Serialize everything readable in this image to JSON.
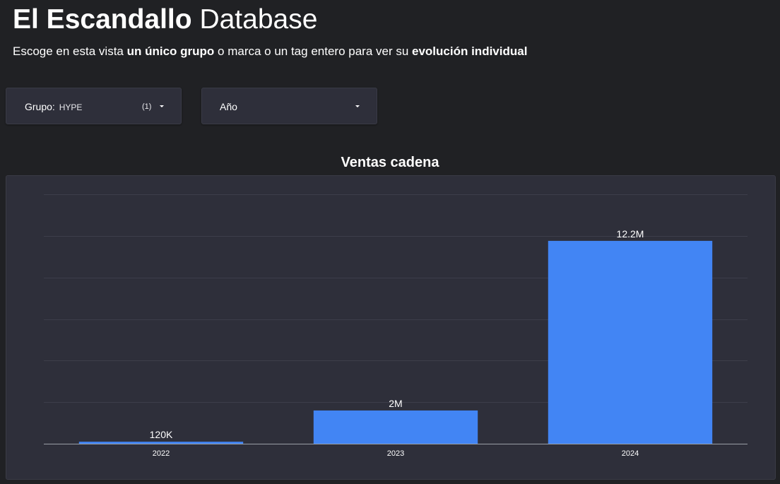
{
  "header": {
    "title_bold": "El Escandallo",
    "title_rest": "Database",
    "subtitle_1": "Escoge en esta vista ",
    "subtitle_b1": "un único grupo",
    "subtitle_2": " o marca o un tag entero para ver su ",
    "subtitle_b2": "evolución individual"
  },
  "filters": {
    "grupo": {
      "label": "Grupo:",
      "value": "HYPE",
      "count": "(1)",
      "icon": "caret-down-icon"
    },
    "ano": {
      "label": "Año",
      "icon": "caret-down-icon"
    }
  },
  "chart_data": {
    "type": "bar",
    "title": "Ventas cadena",
    "categories": [
      "2022",
      "2023",
      "2024"
    ],
    "values": [
      120000,
      2000000,
      12200000
    ],
    "data_labels": [
      "120K",
      "2M",
      "12.2M"
    ],
    "xlabel": "",
    "ylabel": "",
    "ylim": [
      0,
      15000000
    ],
    "grid": true,
    "bar_color": "#4285f4",
    "gridline_color": "#3d3e4a",
    "axis_color": "#9aa0a6"
  },
  "colors": {
    "background": "#202124",
    "panel": "#2e2f3a",
    "text": "#ffffff"
  }
}
